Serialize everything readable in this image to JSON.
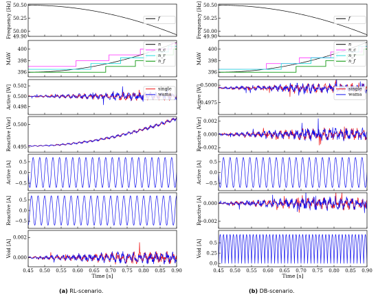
{
  "figure": {
    "captions": [
      {
        "label": "(a)",
        "text": "RL-scenario."
      },
      {
        "label": "(b)",
        "text": "DB-scenario."
      }
    ],
    "xlabel": "Time [s]"
  },
  "colors": {
    "f": "#000000",
    "n": "#000000",
    "n_c": "#ff44ff",
    "n_r": "#22dddd",
    "n_f": "#119911",
    "single": "#ee1111",
    "wama": "#1111ee"
  },
  "chart_data": [
    {
      "id": "a1",
      "column": "RL-scenario.",
      "type": "line",
      "ylabel": "Frequency [Hz]",
      "xlim": [
        0.45,
        0.9
      ],
      "ylim": [
        49.9,
        50.52
      ],
      "xticks": [
        "0.45",
        "0.50",
        "0.55",
        "0.60",
        "0.65",
        "0.70",
        "0.75",
        "0.80",
        "0.85",
        "0.90"
      ],
      "yticks": [
        {
          "v": 49.9,
          "t": "49.90"
        },
        {
          "v": 50.0,
          "t": "50.00"
        },
        {
          "v": 50.25,
          "t": "50.25"
        },
        {
          "v": 50.5,
          "t": "50.50"
        }
      ],
      "legend": [
        {
          "key": "f",
          "label": "f"
        }
      ],
      "series": [
        {
          "key": "f",
          "kind": "curve",
          "fn": "freq",
          "params": [
            50.5,
            50.5,
            49.93
          ]
        }
      ]
    },
    {
      "id": "a2",
      "column": "RL-scenario.",
      "type": "line",
      "ylabel": "MAW",
      "xlim": [
        0.45,
        0.9
      ],
      "ylim": [
        395.2,
        401.5
      ],
      "yticks": [
        {
          "v": 396,
          "t": "396"
        },
        {
          "v": 398,
          "t": "398"
        },
        {
          "v": 400,
          "t": "400"
        }
      ],
      "legend": [
        {
          "key": "n",
          "label": "n"
        },
        {
          "key": "n_c",
          "label": "n_c"
        },
        {
          "key": "n_r",
          "label": "n_r"
        },
        {
          "key": "n_f",
          "label": "n_f"
        }
      ],
      "series": [
        {
          "key": "n",
          "kind": "curve",
          "fn": "maw",
          "params": [
            396.0,
            401.2
          ]
        },
        {
          "key": "n_c",
          "kind": "step",
          "y0": 397,
          "steps": [
            [
              0.595,
              398
            ],
            [
              0.695,
              399
            ],
            [
              0.79,
              400
            ],
            [
              0.885,
              401
            ]
          ]
        },
        {
          "key": "n_r",
          "kind": "step",
          "y0": 396.5,
          "steps": [
            [
              0.64,
              397.5
            ],
            [
              0.73,
              398.5
            ],
            [
              0.81,
              399.5
            ],
            [
              0.875,
              400.5
            ]
          ]
        },
        {
          "key": "n_f",
          "kind": "step",
          "y0": 396,
          "steps": [
            [
              0.685,
              397
            ],
            [
              0.775,
              398
            ],
            [
              0.84,
              399
            ],
            [
              0.89,
              400
            ]
          ]
        }
      ]
    },
    {
      "id": "a3",
      "column": "RL-scenario.",
      "type": "line",
      "ylabel": "Active [W]",
      "xlim": [
        0.45,
        0.9
      ],
      "ylim": [
        0.4965,
        0.5032
      ],
      "yticks": [
        {
          "v": 0.498,
          "t": "0.498"
        },
        {
          "v": 0.5,
          "t": "0.500"
        },
        {
          "v": 0.502,
          "t": "0.502"
        }
      ],
      "legend": [
        {
          "key": "single",
          "label": "single"
        },
        {
          "key": "wama",
          "label": "wama"
        }
      ],
      "series": [
        {
          "key": "single",
          "kind": "curve",
          "fn": "noise",
          "params": [
            0.5,
            0.0009,
            11,
            1
          ]
        },
        {
          "key": "wama",
          "kind": "curve",
          "fn": "noise",
          "params": [
            0.5,
            0.0009,
            11,
            2
          ]
        }
      ]
    },
    {
      "id": "a4",
      "column": "RL-scenario.",
      "type": "line",
      "ylabel": "Reactive [Var]",
      "xlim": [
        0.45,
        0.9
      ],
      "ylim": [
        0.4938,
        0.5018
      ],
      "yticks": [
        {
          "v": 0.495,
          "t": "0.495"
        },
        {
          "v": 0.5,
          "t": "0.500"
        }
      ],
      "series": [
        {
          "key": "single",
          "kind": "curve",
          "fn": "rise",
          "params": [
            0.4952,
            0.0062,
            0.0004,
            3
          ]
        },
        {
          "key": "wama",
          "kind": "curve",
          "fn": "rise",
          "params": [
            0.4952,
            0.0062,
            0.0004,
            4
          ]
        }
      ]
    },
    {
      "id": "a5",
      "column": "RL-scenario.",
      "type": "line",
      "ylabel": "Active [A]",
      "xlim": [
        0.45,
        0.9
      ],
      "ylim": [
        -0.85,
        0.85
      ],
      "yticks": [
        {
          "v": -0.5,
          "t": "−0.5"
        },
        {
          "v": 0.0,
          "t": "0.0"
        },
        {
          "v": 0.5,
          "t": "0.5"
        }
      ],
      "series": [
        {
          "key": "wama",
          "kind": "curve",
          "fn": "sine",
          "params": [
            0.7,
            50,
            0
          ]
        }
      ]
    },
    {
      "id": "a6",
      "column": "RL-scenario.",
      "type": "line",
      "ylabel": "Reactive [A]",
      "xlim": [
        0.45,
        0.9
      ],
      "ylim": [
        -0.85,
        0.85
      ],
      "yticks": [
        {
          "v": -0.5,
          "t": "−0.5"
        },
        {
          "v": 0.0,
          "t": "0.0"
        },
        {
          "v": 0.5,
          "t": "0.5"
        }
      ],
      "series": [
        {
          "key": "wama",
          "kind": "curve",
          "fn": "sine",
          "params": [
            0.7,
            50,
            1.5708
          ]
        }
      ]
    },
    {
      "id": "a7",
      "column": "RL-scenario.",
      "type": "line",
      "ylabel": "Void [A]",
      "xlim": [
        0.45,
        0.9
      ],
      "ylim": [
        -0.0009,
        0.0027
      ],
      "yticks": [
        {
          "v": 0.0,
          "t": "0.000"
        },
        {
          "v": 0.002,
          "t": "0.002"
        }
      ],
      "series": [
        {
          "key": "single",
          "kind": "curve",
          "fn": "noise",
          "params": [
            0.0,
            0.0007,
            11,
            5
          ]
        },
        {
          "key": "wama",
          "kind": "curve",
          "fn": "noise",
          "params": [
            0.0,
            0.0007,
            11,
            6
          ]
        }
      ]
    },
    {
      "id": "b1",
      "column": "DB-scenario.",
      "type": "line",
      "ylabel": "Frequency [Hz]",
      "xlim": [
        0.45,
        0.9
      ],
      "ylim": [
        49.9,
        50.52
      ],
      "yticks": [
        {
          "v": 49.9,
          "t": "49.90"
        },
        {
          "v": 50.0,
          "t": "50.00"
        },
        {
          "v": 50.25,
          "t": "50.25"
        },
        {
          "v": 50.5,
          "t": "50.50"
        }
      ],
      "legend": [
        {
          "key": "f",
          "label": "f"
        }
      ],
      "series": [
        {
          "key": "f",
          "kind": "curve",
          "fn": "freq",
          "params": [
            50.5,
            50.5,
            49.93
          ]
        }
      ]
    },
    {
      "id": "b2",
      "column": "DB-scenario.",
      "type": "line",
      "ylabel": "MAW",
      "xlim": [
        0.45,
        0.9
      ],
      "ylim": [
        395.2,
        401.5
      ],
      "yticks": [
        {
          "v": 396,
          "t": "396"
        },
        {
          "v": 398,
          "t": "398"
        },
        {
          "v": 400,
          "t": "400"
        }
      ],
      "legend": [
        {
          "key": "n",
          "label": "n"
        },
        {
          "key": "n_c",
          "label": "n_c"
        },
        {
          "key": "n_r",
          "label": "n_r"
        },
        {
          "key": "n_f",
          "label": "n_f"
        }
      ],
      "series": [
        {
          "key": "n",
          "kind": "curve",
          "fn": "maw",
          "params": [
            396.0,
            401.2
          ]
        },
        {
          "key": "n_c",
          "kind": "step",
          "y0": 396.5,
          "steps": [
            [
              0.595,
              397.5
            ],
            [
              0.695,
              398.5
            ],
            [
              0.79,
              399.5
            ],
            [
              0.885,
              400.5
            ]
          ]
        },
        {
          "key": "n_r",
          "kind": "step",
          "y0": 396.5,
          "steps": [
            [
              0.64,
              397.5
            ],
            [
              0.73,
              398.5
            ],
            [
              0.81,
              399.5
            ],
            [
              0.875,
              400.5
            ]
          ]
        },
        {
          "key": "n_f",
          "kind": "step",
          "y0": 396,
          "steps": [
            [
              0.685,
              397
            ],
            [
              0.775,
              398
            ],
            [
              0.84,
              399
            ],
            [
              0.89,
              400
            ]
          ]
        }
      ]
    },
    {
      "id": "b3",
      "column": "DB-scenario.",
      "type": "line",
      "ylabel": "Active [W]",
      "xlim": [
        0.45,
        0.9
      ],
      "ylim": [
        0.4958,
        0.5008
      ],
      "yticks": [
        {
          "v": 0.4975,
          "t": "0.4975"
        },
        {
          "v": 0.5,
          "t": "0.5000"
        }
      ],
      "legend": [
        {
          "key": "single",
          "label": "single"
        },
        {
          "key": "wama",
          "label": "wama"
        }
      ],
      "series": [
        {
          "key": "single",
          "kind": "curve",
          "fn": "noise",
          "params": [
            0.4996,
            0.0008,
            11,
            7
          ]
        },
        {
          "key": "wama",
          "kind": "curve",
          "fn": "noise",
          "params": [
            0.4996,
            0.0009,
            11,
            8
          ]
        }
      ]
    },
    {
      "id": "b4",
      "column": "DB-scenario.",
      "type": "line",
      "ylabel": "Reactive [Var]",
      "xlim": [
        0.45,
        0.9
      ],
      "ylim": [
        -0.0027,
        0.0027
      ],
      "yticks": [
        {
          "v": -0.002,
          "t": "−0.002"
        },
        {
          "v": 0.0,
          "t": "0.000"
        },
        {
          "v": 0.002,
          "t": "0.002"
        }
      ],
      "series": [
        {
          "key": "single",
          "kind": "curve",
          "fn": "noise",
          "params": [
            0.0,
            0.0011,
            11,
            9
          ]
        },
        {
          "key": "wama",
          "kind": "curve",
          "fn": "noise",
          "params": [
            0.0,
            0.0011,
            11,
            10
          ]
        }
      ]
    },
    {
      "id": "b5",
      "column": "DB-scenario.",
      "type": "line",
      "ylabel": "Active [A]",
      "xlim": [
        0.45,
        0.9
      ],
      "ylim": [
        -0.85,
        0.85
      ],
      "yticks": [
        {
          "v": -0.5,
          "t": "−0.5"
        },
        {
          "v": 0.0,
          "t": "0.0"
        },
        {
          "v": 0.5,
          "t": "0.5"
        }
      ],
      "series": [
        {
          "key": "wama",
          "kind": "curve",
          "fn": "sine",
          "params": [
            0.7,
            50,
            0
          ]
        }
      ]
    },
    {
      "id": "b6",
      "column": "DB-scenario.",
      "type": "line",
      "ylabel": "Reactive [A]",
      "xlim": [
        0.45,
        0.9
      ],
      "ylim": [
        -0.0028,
        0.0012
      ],
      "yticks": [
        {
          "v": -0.002,
          "t": "−0.002"
        },
        {
          "v": 0.0,
          "t": "0.000"
        }
      ],
      "series": [
        {
          "key": "single",
          "kind": "curve",
          "fn": "noise",
          "params": [
            0.0,
            0.0008,
            11,
            11
          ]
        },
        {
          "key": "wama",
          "kind": "curve",
          "fn": "noise",
          "params": [
            0.0,
            0.0009,
            11,
            12
          ]
        }
      ]
    },
    {
      "id": "b7",
      "column": "DB-scenario.",
      "type": "line",
      "ylabel": "Void [A]",
      "xlim": [
        0.45,
        0.9
      ],
      "ylim": [
        -0.08,
        0.8
      ],
      "yticks": [
        {
          "v": 0.0,
          "t": "0.0"
        },
        {
          "v": 0.25,
          "t": "0.25"
        },
        {
          "v": 0.5,
          "t": "0.5"
        }
      ],
      "series": [
        {
          "key": "wama",
          "kind": "curve",
          "fn": "absine",
          "params": [
            0.7,
            50,
            0
          ]
        }
      ]
    }
  ]
}
